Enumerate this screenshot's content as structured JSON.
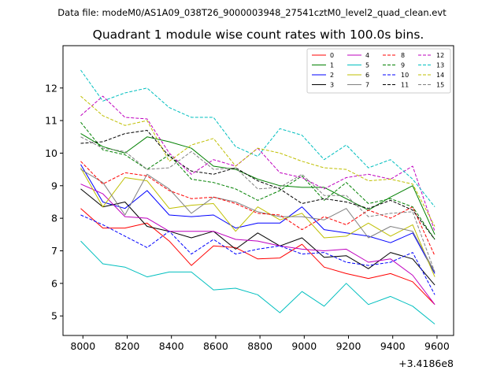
{
  "figure": {
    "suptitle": "Data file: modeM0/AS1A09_038T26_9000003948_27541cztM0_level2_quad_clean.evt"
  },
  "chart_data": {
    "type": "line",
    "title": "Quadrant 1 module wise count rates with 100.0s bins.",
    "xlabel": "",
    "ylabel": "",
    "x_offset_label": "+3.4186e8",
    "x": [
      7990,
      8090,
      8190,
      8290,
      8390,
      8490,
      8590,
      8690,
      8790,
      8890,
      8990,
      9090,
      9190,
      9290,
      9390,
      9490,
      9590
    ],
    "xlim": [
      7910,
      9675
    ],
    "ylim": [
      4.4,
      13.3
    ],
    "x_ticks": [
      8000,
      8200,
      8400,
      8600,
      8800,
      9000,
      9200,
      9400,
      9600
    ],
    "x_tick_labels": [
      "8000",
      "8200",
      "8400",
      "8600",
      "8800",
      "9000",
      "9200",
      "9400",
      "9600"
    ],
    "y_ticks": [
      5,
      6,
      7,
      8,
      9,
      10,
      11,
      12
    ],
    "y_tick_labels": [
      "5",
      "6",
      "7",
      "8",
      "9",
      "10",
      "11",
      "12"
    ],
    "legend_position": "top-right",
    "series": [
      {
        "name": "0",
        "color": "#ff0000",
        "dash": "solid",
        "values": [
          8.3,
          7.7,
          7.7,
          7.85,
          7.3,
          6.55,
          7.15,
          7.1,
          6.75,
          6.78,
          7.2,
          6.5,
          6.3,
          6.15,
          6.3,
          6.05,
          5.35
        ]
      },
      {
        "name": "1",
        "color": "#008000",
        "dash": "solid",
        "values": [
          10.6,
          10.2,
          10.0,
          10.5,
          10.35,
          10.15,
          9.6,
          9.5,
          9.2,
          9.0,
          8.95,
          8.95,
          8.6,
          8.25,
          8.65,
          9.0,
          7.5
        ]
      },
      {
        "name": "2",
        "color": "#0000ff",
        "dash": "solid",
        "values": [
          9.65,
          8.5,
          8.3,
          8.85,
          8.1,
          8.05,
          8.1,
          7.7,
          7.85,
          7.85,
          8.35,
          7.65,
          7.55,
          7.45,
          7.25,
          7.55,
          6.3
        ]
      },
      {
        "name": "3",
        "color": "#000000",
        "dash": "solid",
        "values": [
          8.9,
          8.35,
          8.5,
          7.75,
          7.6,
          7.4,
          7.6,
          7.05,
          7.55,
          7.15,
          7.4,
          6.8,
          6.85,
          6.45,
          6.95,
          6.75,
          5.95
        ]
      },
      {
        "name": "4",
        "color": "#bf00bf",
        "dash": "solid",
        "values": [
          9.05,
          8.75,
          8.05,
          8.0,
          7.6,
          7.6,
          7.6,
          7.35,
          7.3,
          7.15,
          7.05,
          7.0,
          7.05,
          6.65,
          6.75,
          6.25,
          5.35
        ]
      },
      {
        "name": "5",
        "color": "#00bfbf",
        "dash": "solid",
        "values": [
          7.3,
          6.6,
          6.5,
          6.2,
          6.35,
          6.35,
          5.8,
          5.85,
          5.65,
          5.1,
          5.75,
          5.3,
          6.0,
          5.35,
          5.6,
          5.3,
          4.75
        ]
      },
      {
        "name": "6",
        "color": "#bfbf00",
        "dash": "solid",
        "values": [
          9.55,
          8.35,
          9.25,
          9.15,
          8.3,
          8.4,
          8.45,
          7.6,
          8.35,
          7.95,
          8.15,
          7.4,
          7.45,
          7.85,
          7.45,
          7.8,
          6.2
        ]
      },
      {
        "name": "7",
        "color": "#808080",
        "dash": "solid",
        "values": [
          9.5,
          9.1,
          8.1,
          9.35,
          8.9,
          8.15,
          8.65,
          8.5,
          8.2,
          8.05,
          8.05,
          7.95,
          8.3,
          7.4,
          7.75,
          7.6,
          6.35
        ]
      },
      {
        "name": "8",
        "color": "#ff0000",
        "dash": "dashed",
        "values": [
          9.75,
          9.05,
          9.4,
          9.3,
          8.85,
          8.6,
          8.65,
          8.45,
          8.15,
          8.1,
          7.65,
          8.05,
          7.8,
          8.25,
          8.0,
          8.35,
          6.85
        ]
      },
      {
        "name": "9",
        "color": "#008000",
        "dash": "dashed",
        "values": [
          10.95,
          10.1,
          9.95,
          9.5,
          9.95,
          9.2,
          9.1,
          8.9,
          8.55,
          8.85,
          9.3,
          8.55,
          9.1,
          8.45,
          8.6,
          8.35,
          7.35
        ]
      },
      {
        "name": "10",
        "color": "#0000ff",
        "dash": "dashed",
        "values": [
          8.1,
          7.8,
          7.45,
          7.1,
          7.6,
          6.9,
          7.35,
          6.9,
          7.05,
          7.15,
          6.9,
          6.95,
          6.65,
          6.55,
          6.65,
          6.95,
          5.65
        ]
      },
      {
        "name": "11",
        "color": "#000000",
        "dash": "dashed",
        "values": [
          10.3,
          10.35,
          10.6,
          10.7,
          9.9,
          9.45,
          9.35,
          9.55,
          9.15,
          8.9,
          8.45,
          8.6,
          8.5,
          8.3,
          8.55,
          8.25,
          7.35
        ]
      },
      {
        "name": "12",
        "color": "#bf00bf",
        "dash": "dashed",
        "values": [
          11.15,
          11.75,
          11.1,
          11.05,
          10.0,
          9.35,
          9.8,
          9.6,
          10.15,
          9.4,
          9.25,
          8.9,
          9.25,
          9.35,
          9.2,
          9.6,
          7.6
        ]
      },
      {
        "name": "13",
        "color": "#00bfbf",
        "dash": "dashed",
        "values": [
          12.55,
          11.6,
          11.85,
          12.0,
          11.4,
          11.1,
          11.1,
          10.2,
          9.9,
          10.75,
          10.55,
          9.8,
          10.25,
          9.55,
          9.8,
          9.2,
          8.35
        ]
      },
      {
        "name": "14",
        "color": "#bfbf00",
        "dash": "dashed",
        "values": [
          11.75,
          11.15,
          10.85,
          11.0,
          9.75,
          10.25,
          10.45,
          9.6,
          10.15,
          10.0,
          9.75,
          9.55,
          9.5,
          9.15,
          9.2,
          9.05,
          7.75
        ]
      },
      {
        "name": "15",
        "color": "#808080",
        "dash": "dashed",
        "values": [
          10.5,
          10.15,
          10.05,
          9.5,
          9.55,
          10.05,
          9.5,
          9.55,
          8.9,
          8.95,
          9.35,
          8.7,
          8.7,
          8.05,
          8.15,
          8.2,
          6.35
        ]
      }
    ]
  }
}
